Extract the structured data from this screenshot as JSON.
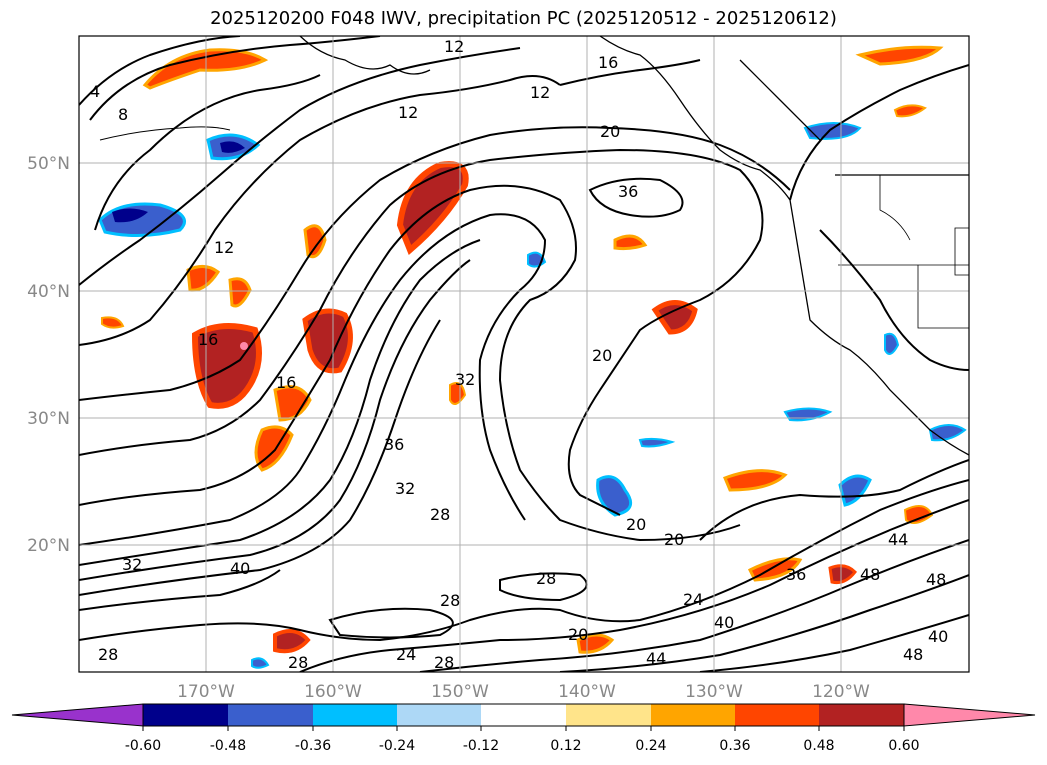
{
  "title": "2025120200 F048 IWV, precipitation PC (2025120512 - 2025120612)",
  "lat_labels": [
    "50°N",
    "40°N",
    "30°N",
    "20°N"
  ],
  "lon_labels": [
    "170°W",
    "160°W",
    "150°W",
    "140°W",
    "130°W",
    "120°W"
  ],
  "contour_labels": [
    "4",
    "8",
    "12",
    "12",
    "12",
    "12",
    "16",
    "16",
    "16",
    "20",
    "20",
    "20",
    "20",
    "20",
    "24",
    "24",
    "28",
    "28",
    "28",
    "28",
    "28",
    "28",
    "32",
    "32",
    "32",
    "36",
    "36",
    "36",
    "40",
    "40",
    "40",
    "44",
    "44",
    "48",
    "48",
    "48"
  ],
  "colorbar": {
    "ticks": [
      "-0.60",
      "-0.48",
      "-0.36",
      "-0.24",
      "-0.12",
      "0.12",
      "0.24",
      "0.36",
      "0.48",
      "0.60"
    ],
    "colors": [
      "#9932CC",
      "#00008B",
      "#3A5FCD",
      "#00BFFF",
      "#ADD8F6",
      "#FFFFFF",
      "#FFE48A",
      "#FFA500",
      "#FF4500",
      "#B22222",
      "#FF88AA"
    ]
  }
}
